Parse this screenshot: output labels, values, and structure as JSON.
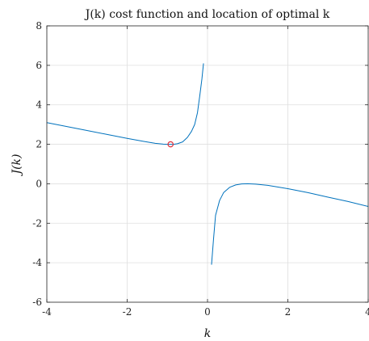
{
  "chart_data": {
    "type": "line",
    "title": "J(k) cost function and location of optimal k",
    "xlabel": "k",
    "ylabel": "J(k)",
    "xlim": [
      -4,
      4
    ],
    "ylim": [
      -6,
      8
    ],
    "xticks": [
      -4,
      -2,
      0,
      2,
      4
    ],
    "yticks": [
      -6,
      -4,
      -2,
      0,
      2,
      4,
      6,
      8
    ],
    "xtick_labels": [
      "-4",
      "-2",
      "0",
      "2",
      "4"
    ],
    "ytick_labels": [
      "-6",
      "-4",
      "-2",
      "0",
      "2",
      "4",
      "6",
      "8"
    ],
    "grid": true,
    "series": [
      {
        "color": "#0072BD",
        "x": [
          -4.0,
          -3.5,
          -3.0,
          -2.5,
          -2.0,
          -1.6,
          -1.3,
          -1.1,
          -1.0,
          -0.92,
          -0.85,
          -0.75,
          -0.62,
          -0.5,
          -0.4,
          -0.32,
          -0.25,
          -0.19,
          -0.14,
          -0.1
        ],
        "y": [
          3.1,
          2.9,
          2.7,
          2.5,
          2.3,
          2.15,
          2.05,
          2.01,
          2.0,
          2.0,
          2.0,
          2.03,
          2.12,
          2.35,
          2.65,
          3.0,
          3.6,
          4.5,
          5.3,
          6.1
        ]
      },
      {
        "color": "#0072BD",
        "x": [
          0.1,
          0.15,
          0.2,
          0.3,
          0.4,
          0.55,
          0.7,
          0.85,
          1.0,
          1.2,
          1.5,
          2.0,
          2.5,
          3.0,
          3.5,
          4.0
        ],
        "y": [
          -4.1,
          -2.8,
          -1.6,
          -0.85,
          -0.45,
          -0.18,
          -0.06,
          -0.01,
          0.0,
          -0.02,
          -0.08,
          -0.25,
          -0.45,
          -0.68,
          -0.9,
          -1.15
        ]
      }
    ],
    "optimal_point": {
      "x": -0.92,
      "y": 2.0,
      "color": "#E0303A"
    }
  }
}
